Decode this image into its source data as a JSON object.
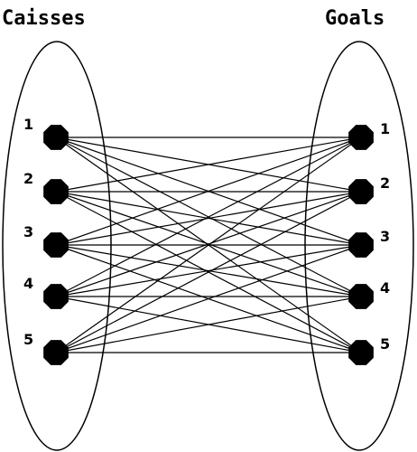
{
  "left_set": {
    "title": "Caisses",
    "nodes": [
      "1",
      "2",
      "3",
      "4",
      "5"
    ]
  },
  "right_set": {
    "title": "Goals",
    "nodes": [
      "1",
      "2",
      "3",
      "4",
      "5"
    ]
  },
  "edges": "complete bipartite: every Caisse connected to every Goal",
  "colors": {
    "line": "#000000",
    "node": "#000000",
    "background": "#ffffff"
  }
}
